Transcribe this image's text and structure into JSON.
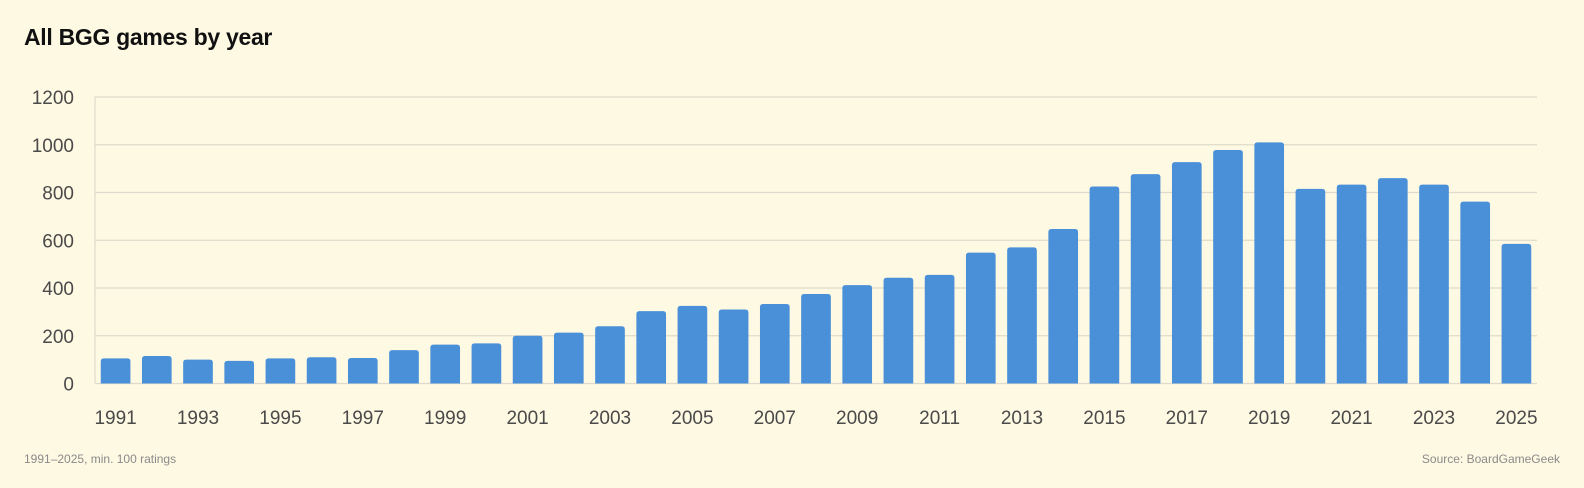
{
  "title": "All BGG games by year",
  "footnote": "1991–2025, min. 100 ratings",
  "source": "Source: BoardGameGeek",
  "colors": {
    "background": "#fef9e3",
    "bar": "#4a90d9",
    "grid": "#dedbcc",
    "axis_text": "#4a4a4a",
    "footer_text": "#8a8a8a"
  },
  "chart_data": {
    "type": "bar",
    "title": "All BGG games by year",
    "xlabel": "",
    "ylabel": "",
    "ylim": [
      0,
      1200
    ],
    "yticks": [
      0,
      200,
      400,
      600,
      800,
      1000,
      1200
    ],
    "grid": true,
    "legend": "none",
    "categories": [
      "1991",
      "1992",
      "1993",
      "1994",
      "1995",
      "1996",
      "1997",
      "1998",
      "1999",
      "2000",
      "2001",
      "2002",
      "2003",
      "2004",
      "2005",
      "2006",
      "2007",
      "2008",
      "2009",
      "2010",
      "2011",
      "2012",
      "2013",
      "2014",
      "2015",
      "2016",
      "2017",
      "2018",
      "2019",
      "2020",
      "2021",
      "2022",
      "2023",
      "2024",
      "2025"
    ],
    "xtick_labels": [
      "1991",
      "1993",
      "1995",
      "1997",
      "1999",
      "2001",
      "2003",
      "2005",
      "2007",
      "2009",
      "2011",
      "2013",
      "2015",
      "2017",
      "2019",
      "2021",
      "2023",
      "2025"
    ],
    "values": [
      105,
      115,
      100,
      95,
      105,
      110,
      107,
      140,
      163,
      168,
      200,
      213,
      240,
      303,
      325,
      310,
      333,
      375,
      412,
      443,
      455,
      548,
      570,
      647,
      825,
      877,
      927,
      978,
      1010,
      815,
      833,
      860,
      833,
      762,
      585
    ]
  }
}
